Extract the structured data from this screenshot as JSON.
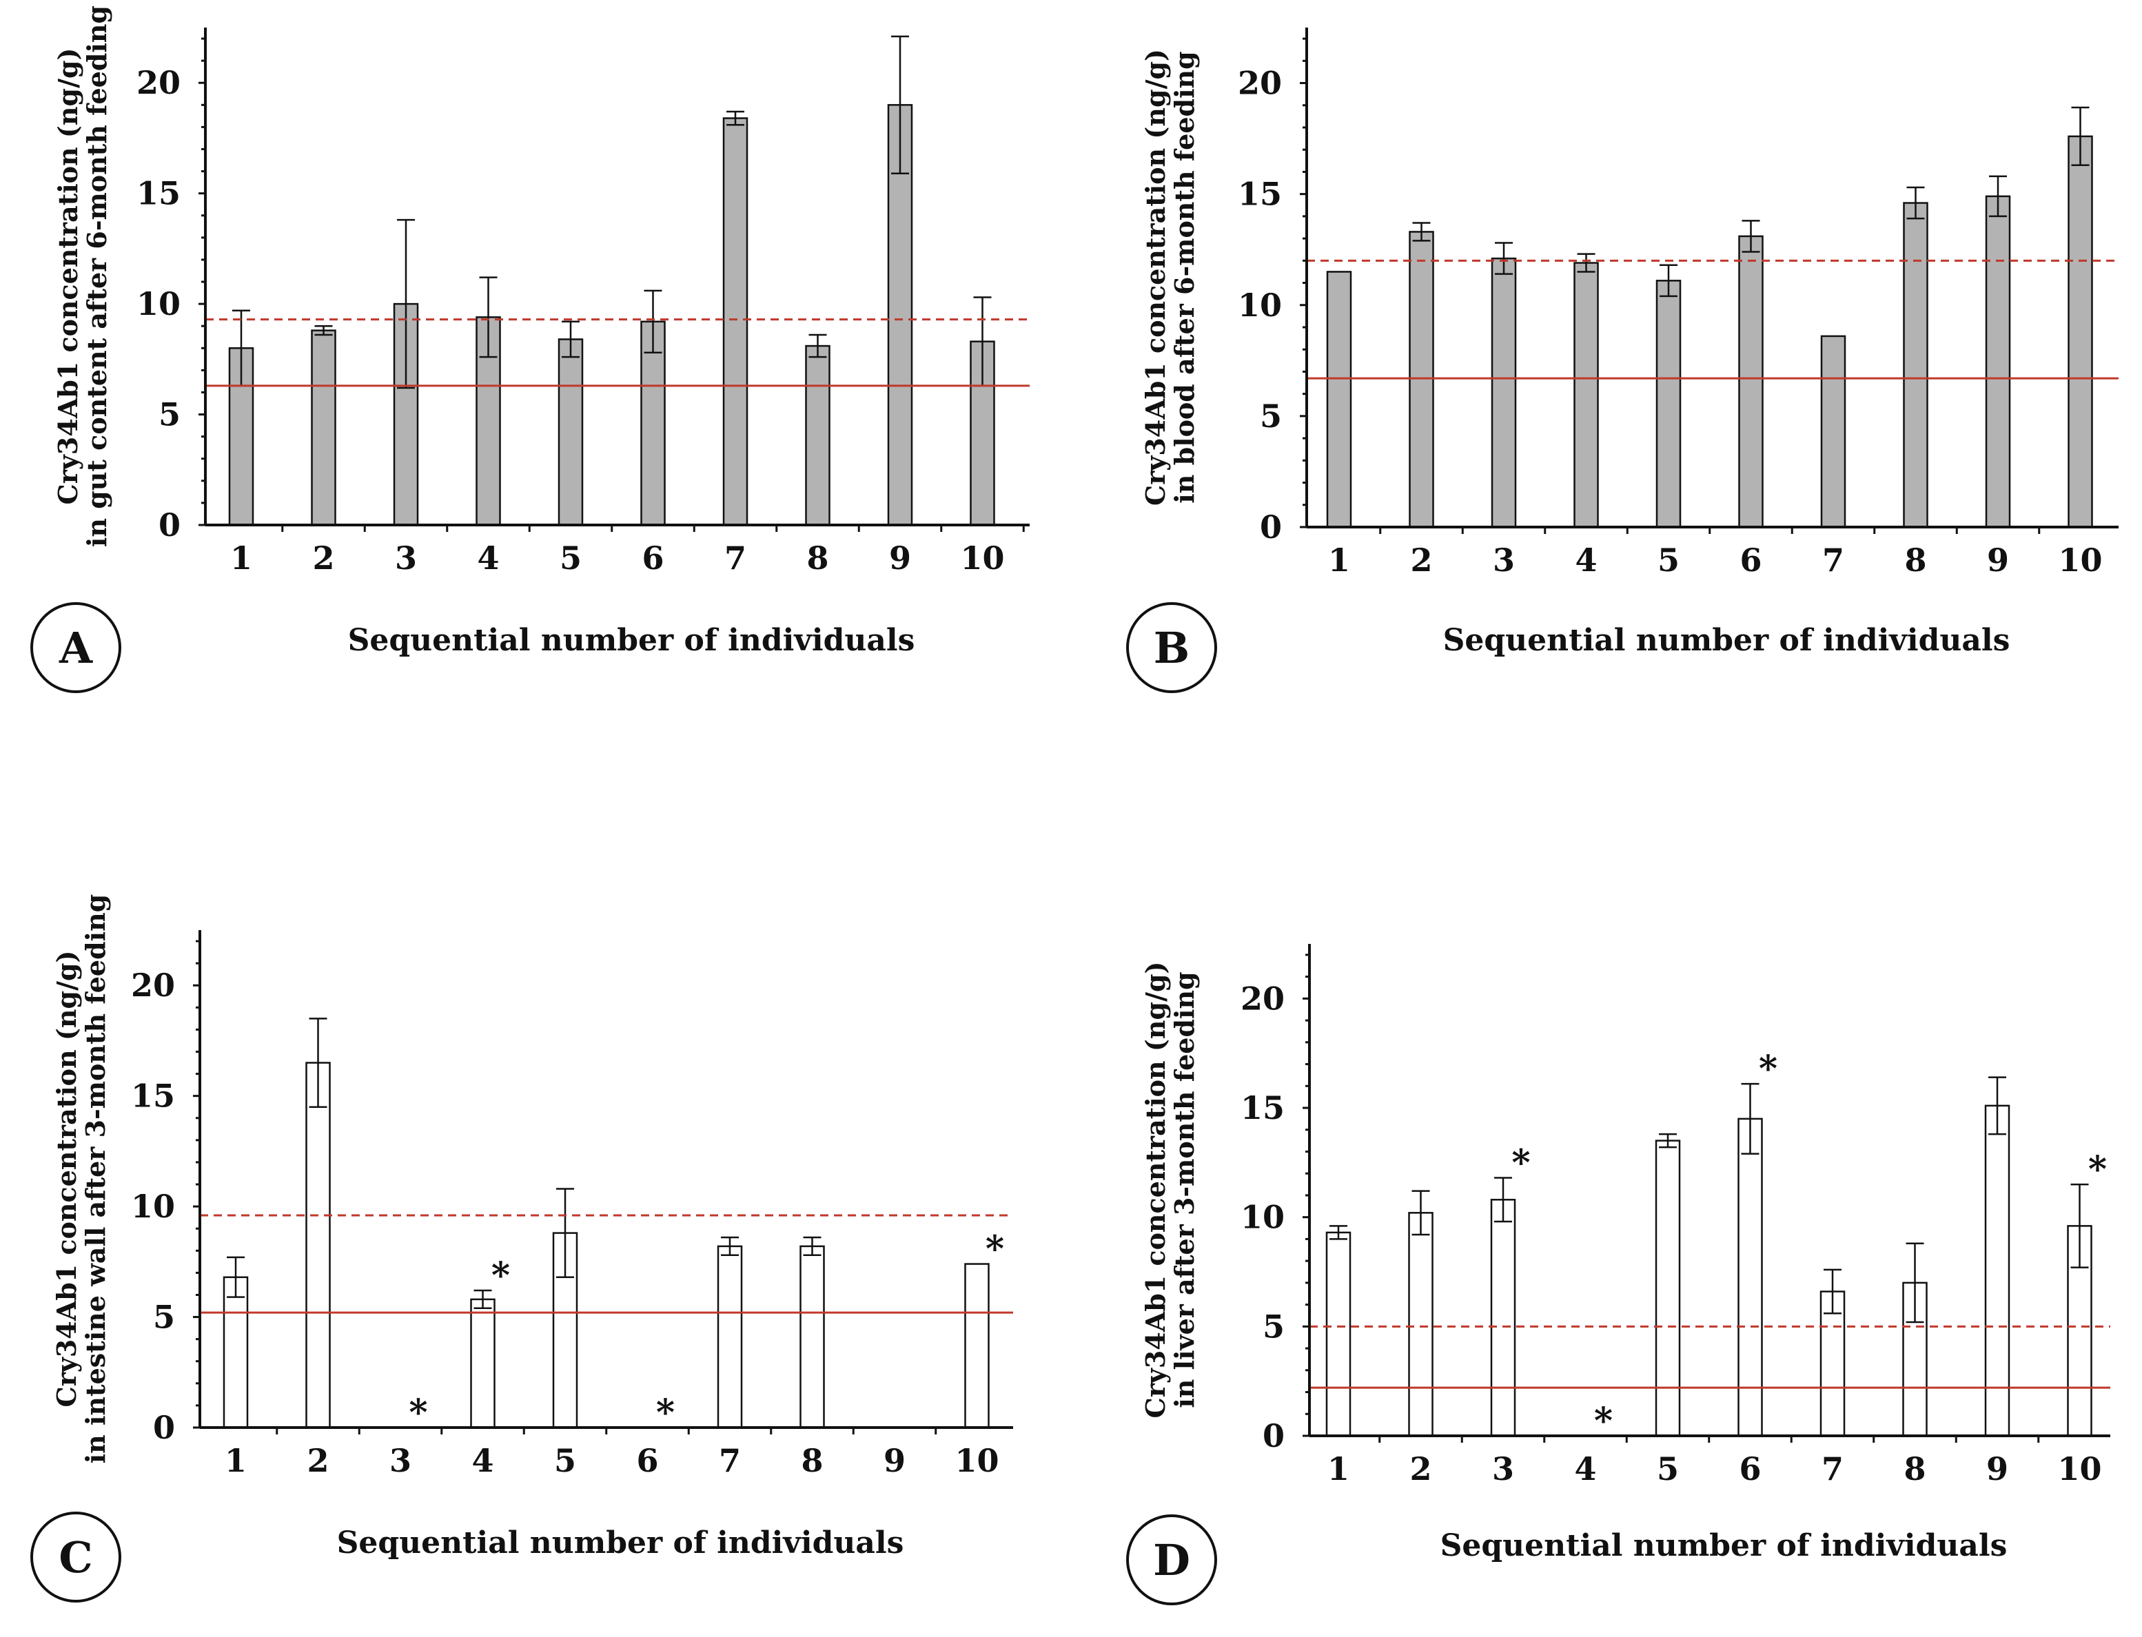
{
  "figure": {
    "charts": [
      "A",
      "B",
      "C",
      "D"
    ]
  },
  "chart_data": [
    {
      "panel": "A",
      "type": "bar",
      "ylabel_line1": "Cry34Ab1 concentration (ng/g)",
      "ylabel_line2": "in gut content after 6-month feeding",
      "xlabel": "Sequential number of individuals",
      "categories": [
        "1",
        "2",
        "3",
        "4",
        "5",
        "6",
        "7",
        "8",
        "9",
        "10"
      ],
      "values": [
        8.0,
        8.8,
        10.0,
        9.4,
        8.4,
        9.2,
        18.4,
        8.1,
        19.0,
        8.3
      ],
      "errors": [
        1.7,
        0.2,
        3.8,
        1.8,
        0.8,
        1.4,
        0.3,
        0.5,
        3.1,
        2.0
      ],
      "yticks": [
        "0",
        "5",
        "10",
        "15",
        "20"
      ],
      "ylim": [
        0,
        22.5
      ],
      "solid_line": 6.3,
      "dashed_line": 9.3,
      "bar_fill": "#b3b3b3",
      "asterisks": []
    },
    {
      "panel": "B",
      "type": "bar",
      "ylabel_line1": "Cry34Ab1 concentration (ng/g)",
      "ylabel_line2": "in blood after 6-month feeding",
      "xlabel": "Sequential number of individuals",
      "categories": [
        "1",
        "2",
        "3",
        "4",
        "5",
        "6",
        "7",
        "8",
        "9",
        "10"
      ],
      "values": [
        11.5,
        13.3,
        12.1,
        11.9,
        11.1,
        13.1,
        8.6,
        14.6,
        14.9,
        17.6
      ],
      "errors": [
        0,
        0.4,
        0.7,
        0.4,
        0.7,
        0.7,
        0,
        0.7,
        0.9,
        1.3
      ],
      "yticks": [
        "0",
        "5",
        "10",
        "15",
        "20"
      ],
      "ylim": [
        0,
        22.5
      ],
      "solid_line": 6.7,
      "dashed_line": 12.0,
      "bar_fill": "#b3b3b3",
      "asterisks": []
    },
    {
      "panel": "C",
      "type": "bar",
      "ylabel_line1": "Cry34Ab1 concentration (ng/g)",
      "ylabel_line2": "in intestine wall after 3-month feeding",
      "xlabel": "Sequential number of individuals",
      "categories": [
        "1",
        "2",
        "3",
        "4",
        "5",
        "6",
        "7",
        "8",
        "9",
        "10"
      ],
      "values": [
        6.8,
        16.5,
        0,
        5.8,
        8.8,
        0,
        8.2,
        8.2,
        0,
        7.4
      ],
      "errors": [
        0.9,
        2.0,
        0,
        0.4,
        2.0,
        0,
        0.4,
        0.4,
        0,
        0
      ],
      "yticks": [
        "0",
        "5",
        "10",
        "15",
        "20"
      ],
      "ylim": [
        0,
        22.5
      ],
      "solid_line": 5.2,
      "dashed_line": 9.6,
      "bar_fill": "#ffffff",
      "asterisks": [
        {
          "index": 2,
          "value": 0,
          "text": "*"
        },
        {
          "index": 3,
          "value": 6.2,
          "text": "*"
        },
        {
          "index": 5,
          "value": 0,
          "text": "*"
        },
        {
          "index": 9,
          "value": 7.4,
          "text": "*"
        }
      ]
    },
    {
      "panel": "D",
      "type": "bar",
      "ylabel_line1": "Cry34Ab1 concentration (ng/g)",
      "ylabel_line2": "in liver after 3-month feeding",
      "xlabel": "Sequential number of individuals",
      "categories": [
        "1",
        "2",
        "3",
        "4",
        "5",
        "6",
        "7",
        "8",
        "9",
        "10"
      ],
      "values": [
        9.3,
        10.2,
        10.8,
        0,
        13.5,
        14.5,
        6.6,
        7.0,
        15.1,
        9.6
      ],
      "errors": [
        0.3,
        1.0,
        1.0,
        0,
        0.3,
        1.6,
        1.0,
        1.8,
        1.3,
        1.9
      ],
      "yticks": [
        "0",
        "5",
        "10",
        "15",
        "20"
      ],
      "ylim": [
        0,
        22.5
      ],
      "solid_line": 2.2,
      "dashed_line": 5.0,
      "bar_fill": "#ffffff",
      "asterisks": [
        {
          "index": 2,
          "value": 11.8,
          "text": "*"
        },
        {
          "index": 3,
          "value": 0,
          "text": "*"
        },
        {
          "index": 5,
          "value": 16.1,
          "text": "*"
        },
        {
          "index": 9,
          "value": 11.5,
          "text": "*"
        }
      ]
    }
  ]
}
